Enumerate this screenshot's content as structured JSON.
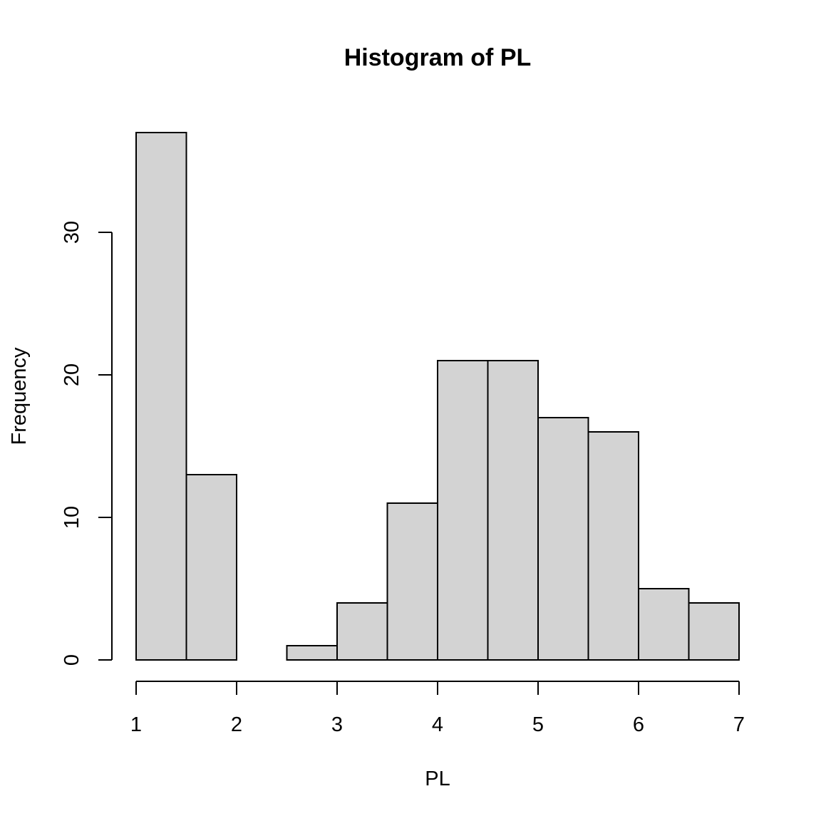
{
  "chart_data": {
    "type": "bar",
    "title": "Histogram of PL",
    "xlabel": "PL",
    "ylabel": "Frequency",
    "bins": [
      {
        "start": 1.0,
        "end": 1.5,
        "count": 37
      },
      {
        "start": 1.5,
        "end": 2.0,
        "count": 13
      },
      {
        "start": 2.0,
        "end": 2.5,
        "count": 0
      },
      {
        "start": 2.5,
        "end": 3.0,
        "count": 1
      },
      {
        "start": 3.0,
        "end": 3.5,
        "count": 4
      },
      {
        "start": 3.5,
        "end": 4.0,
        "count": 11
      },
      {
        "start": 4.0,
        "end": 4.5,
        "count": 21
      },
      {
        "start": 4.5,
        "end": 5.0,
        "count": 21
      },
      {
        "start": 5.0,
        "end": 5.5,
        "count": 17
      },
      {
        "start": 5.5,
        "end": 6.0,
        "count": 16
      },
      {
        "start": 6.0,
        "end": 6.5,
        "count": 5
      },
      {
        "start": 6.5,
        "end": 7.0,
        "count": 4
      }
    ],
    "x_ticks": [
      1,
      2,
      3,
      4,
      5,
      6,
      7
    ],
    "y_ticks": [
      0,
      10,
      20,
      30
    ],
    "xlim": [
      1,
      7
    ],
    "ylim": [
      0,
      37
    ],
    "grid": false,
    "legend": "none",
    "bar_color": "#d3d3d3",
    "edge_color": "#000000"
  }
}
